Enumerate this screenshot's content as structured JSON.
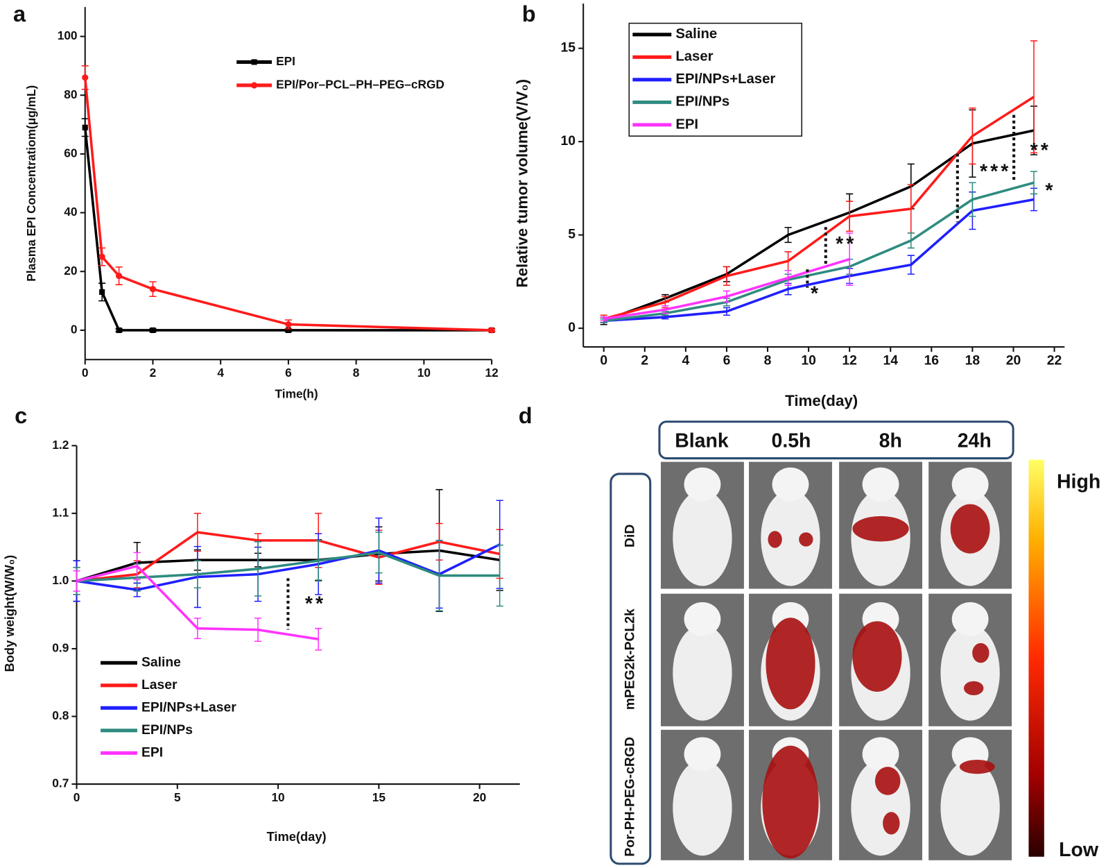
{
  "chart_data": [
    {
      "type": "line",
      "panel": "a",
      "xlabel": "Time(h)",
      "ylabel": "Plasma EPI Concentratiom(μg/mL)",
      "x": [
        0,
        0.5,
        1,
        2,
        6,
        12
      ],
      "xlim": [
        0,
        12
      ],
      "ylim": [
        -10,
        110
      ],
      "xticks": [
        0,
        2,
        4,
        6,
        8,
        10,
        12
      ],
      "yticks": [
        0,
        20,
        40,
        60,
        80,
        100
      ],
      "series": [
        {
          "name": "EPI",
          "color": "#000000",
          "marker": "square",
          "values": [
            69,
            13,
            0,
            0,
            0,
            0
          ],
          "errors": [
            3,
            3,
            0.5,
            0.5,
            0.5,
            0.5
          ]
        },
        {
          "name": "EPI/Por–PCL–PH–PEG–cRGD",
          "color": "#ff1a1a",
          "marker": "circle",
          "values": [
            86,
            25,
            18.5,
            14,
            2,
            0
          ],
          "errors": [
            4,
            3,
            3,
            2.5,
            1.5,
            0.5
          ]
        }
      ]
    },
    {
      "type": "line",
      "panel": "b",
      "xlabel": "Time(day)",
      "ylabel": "Relative tumor volume(V/V₀)",
      "x": [
        0,
        3,
        6,
        9,
        12,
        15,
        18,
        21
      ],
      "xlim": [
        -1,
        22.5
      ],
      "ylim": [
        -1,
        17.4
      ],
      "xticks": [
        0,
        2,
        4,
        6,
        8,
        10,
        12,
        14,
        16,
        18,
        20,
        22
      ],
      "yticks": [
        0,
        5,
        10,
        15
      ],
      "annotations": [
        "**",
        "*",
        "***",
        "**",
        "*"
      ],
      "series": [
        {
          "name": "Saline",
          "color": "#000000",
          "values": [
            0.4,
            1.6,
            2.9,
            5.0,
            6.2,
            7.6,
            9.9,
            10.6
          ],
          "errors": [
            0.2,
            0.2,
            0.4,
            0.4,
            1.0,
            1.2,
            1.8,
            1.3
          ]
        },
        {
          "name": "Laser",
          "color": "#ff1a1a",
          "values": [
            0.5,
            1.4,
            2.8,
            3.6,
            6.0,
            6.4,
            10.3,
            12.4
          ],
          "errors": [
            0.2,
            0.3,
            0.5,
            0.5,
            0.8,
            1.3,
            1.5,
            3.0
          ]
        },
        {
          "name": "EPI/NPs+Laser",
          "color": "#1f1fff",
          "values": [
            0.4,
            0.6,
            0.9,
            2.1,
            2.8,
            3.4,
            6.3,
            6.9
          ],
          "errors": [
            0.1,
            0.1,
            0.2,
            0.3,
            0.4,
            0.5,
            1.0,
            0.6
          ]
        },
        {
          "name": "EPI/NPs",
          "color": "#2e8b7f",
          "values": [
            0.4,
            0.8,
            1.4,
            2.6,
            3.3,
            4.7,
            6.9,
            7.8
          ],
          "errors": [
            0.1,
            0.1,
            0.2,
            0.3,
            0.4,
            0.4,
            0.9,
            0.6
          ]
        },
        {
          "name": "EPI",
          "color": "#ff33ff",
          "values": [
            0.5,
            1.0,
            1.7,
            2.7,
            3.7,
            null,
            null,
            null
          ],
          "errors": [
            0.1,
            0.2,
            0.3,
            0.4,
            1.4,
            null,
            null,
            null
          ]
        }
      ]
    },
    {
      "type": "line",
      "panel": "c",
      "xlabel": "Time(day)",
      "ylabel": "Body weight(W/W₀)",
      "x": [
        0,
        3,
        6,
        9,
        12,
        15,
        18,
        21
      ],
      "xlim": [
        0,
        22
      ],
      "ylim": [
        0.7,
        1.2
      ],
      "xticks": [
        0,
        5,
        10,
        15,
        20
      ],
      "yticks": [
        0.7,
        0.8,
        0.9,
        {
          "value": 1,
          "label": "1.0"
        },
        1.1,
        1.2
      ],
      "annotations": [
        "**"
      ],
      "series": [
        {
          "name": "Saline",
          "color": "#000000",
          "values": [
            1.0,
            1.027,
            1.031,
            1.031,
            1.031,
            1.04,
            1.045,
            1.031
          ],
          "errors": [
            0.03,
            0.03,
            0.015,
            0.01,
            0.03,
            0.04,
            0.09,
            0.045
          ]
        },
        {
          "name": "Laser",
          "color": "#ff1a1a",
          "values": [
            1.0,
            1.01,
            1.072,
            1.06,
            1.06,
            1.035,
            1.058,
            1.04
          ],
          "errors": [
            0.02,
            0.02,
            0.028,
            0.01,
            0.04,
            0.04,
            0.027,
            0.036
          ]
        },
        {
          "name": "EPI/NPs+Laser",
          "color": "#1f1fff",
          "values": [
            1.0,
            0.987,
            1.006,
            1.01,
            1.025,
            1.045,
            1.01,
            1.054
          ],
          "errors": [
            0.03,
            0.01,
            0.045,
            0.04,
            0.045,
            0.048,
            0.05,
            0.065
          ]
        },
        {
          "name": "EPI/NPs",
          "color": "#2e8b7f",
          "values": [
            1.0,
            1.005,
            1.01,
            1.018,
            1.03,
            1.042,
            1.008,
            1.008
          ],
          "errors": [
            0.02,
            0.02,
            0.02,
            0.04,
            0.03,
            0.03,
            0.052,
            0.045
          ]
        },
        {
          "name": "EPI",
          "color": "#ff33ff",
          "values": [
            1.0,
            1.022,
            0.93,
            0.928,
            0.914,
            null,
            null,
            null
          ],
          "errors": [
            0.015,
            0.02,
            0.015,
            0.017,
            0.016,
            null,
            null,
            null
          ]
        }
      ]
    }
  ],
  "panel_d": {
    "panel": "d",
    "columns": [
      "Blank",
      "0.5h",
      "8h",
      "24h"
    ],
    "rows": [
      "DiD",
      "mPEG2k-PCL2k",
      "Por-PH-PEG-cRGD"
    ],
    "colorbar": {
      "high": "High",
      "low": "Low"
    }
  }
}
